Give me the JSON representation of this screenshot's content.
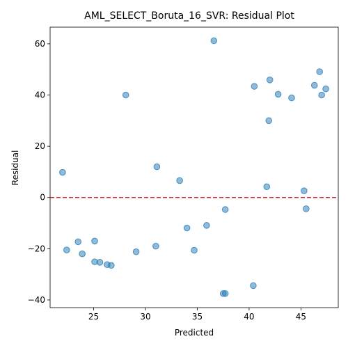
{
  "chart_data": {
    "type": "scatter",
    "title": "AML_SELECT_Boruta_16_SVR: Residual Plot",
    "xlabel": "Predicted",
    "ylabel": "Residual",
    "xlim": [
      20.8,
      48.6
    ],
    "ylim": [
      -43,
      66.5
    ],
    "xticks": [
      25,
      30,
      35,
      40,
      45
    ],
    "yticks": [
      -40,
      -20,
      0,
      20,
      40,
      60
    ],
    "grid": false,
    "point_color": "#1f77b4",
    "reference_line": {
      "y": 0,
      "color": "#d62728",
      "style": "dashed"
    },
    "points": [
      {
        "x": 22.0,
        "y": 9.8
      },
      {
        "x": 22.4,
        "y": -20.5
      },
      {
        "x": 23.5,
        "y": -17.3
      },
      {
        "x": 23.9,
        "y": -22.0
      },
      {
        "x": 25.1,
        "y": -17.0
      },
      {
        "x": 25.1,
        "y": -25.1
      },
      {
        "x": 25.6,
        "y": -25.3
      },
      {
        "x": 26.3,
        "y": -26.2
      },
      {
        "x": 26.7,
        "y": -26.5
      },
      {
        "x": 28.1,
        "y": 40.0
      },
      {
        "x": 29.1,
        "y": -21.2
      },
      {
        "x": 31.0,
        "y": -19.0
      },
      {
        "x": 31.1,
        "y": 12.0
      },
      {
        "x": 33.3,
        "y": 6.6
      },
      {
        "x": 34.0,
        "y": -11.9
      },
      {
        "x": 34.7,
        "y": -20.6
      },
      {
        "x": 35.9,
        "y": -10.9
      },
      {
        "x": 36.6,
        "y": 61.2
      },
      {
        "x": 37.5,
        "y": -37.5
      },
      {
        "x": 37.7,
        "y": -37.5
      },
      {
        "x": 37.7,
        "y": -4.7
      },
      {
        "x": 40.4,
        "y": -34.4
      },
      {
        "x": 40.5,
        "y": 43.4
      },
      {
        "x": 41.7,
        "y": 4.2
      },
      {
        "x": 41.9,
        "y": 30.0
      },
      {
        "x": 42.0,
        "y": 45.9
      },
      {
        "x": 42.8,
        "y": 40.3
      },
      {
        "x": 44.1,
        "y": 38.9
      },
      {
        "x": 45.3,
        "y": 2.6
      },
      {
        "x": 45.5,
        "y": -4.4
      },
      {
        "x": 46.3,
        "y": 43.8
      },
      {
        "x": 46.8,
        "y": 49.1
      },
      {
        "x": 47.0,
        "y": 40.0
      },
      {
        "x": 47.4,
        "y": 42.4
      }
    ]
  }
}
